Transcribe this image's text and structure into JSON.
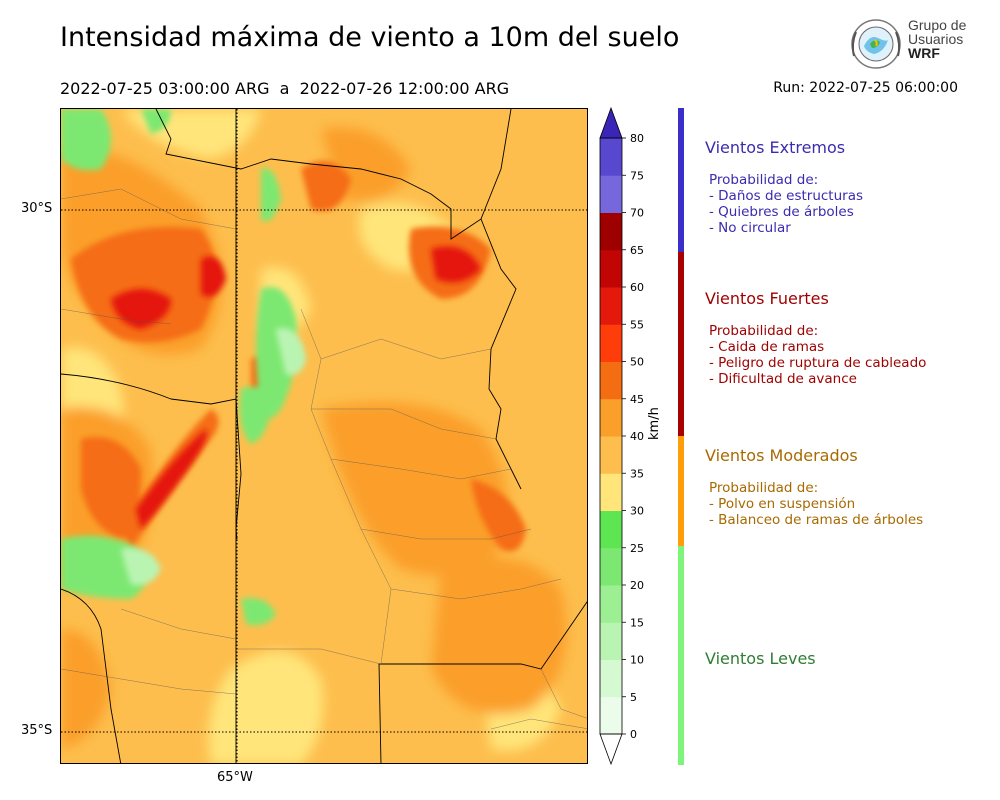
{
  "header": {
    "title": "Intensidad máxima de viento a 10m del suelo",
    "period": "2022-07-25 03:00:00 ARG  a  2022-07-26 12:00:00 ARG",
    "run": "Run: 2022-07-25 06:00:00"
  },
  "logo": {
    "line1": "Grupo de",
    "line2": "Usuarios",
    "line3": "WRF"
  },
  "map_labels": {
    "lat_north": "30°S",
    "lat_south": "35°S",
    "lon": "65°W"
  },
  "colorbar": {
    "unit": "km/h",
    "ticks": [
      0,
      5,
      10,
      15,
      20,
      25,
      30,
      35,
      40,
      45,
      50,
      55,
      60,
      65,
      70,
      75,
      80
    ],
    "colors": [
      "#ebfdea",
      "#d5f9d1",
      "#b9f4b2",
      "#9cef92",
      "#7de871",
      "#5ee552",
      "#ffe57a",
      "#fdbe4d",
      "#fb9f2b",
      "#f56d12",
      "#ff3d0a",
      "#e4190c",
      "#c10404",
      "#9e0000",
      "#7667dc",
      "#5848cf",
      "#4534c6"
    ],
    "under_color": "#ffffff",
    "over_color": "#3b25b8"
  },
  "categories": [
    {
      "title": "Vientos Extremos",
      "color": "#3b2dc8",
      "text_color": "#3b2bb0",
      "heading": "Probabilidad de:",
      "items": [
        "- Daños de estructuras",
        "- Quiebres de árboles",
        "- No circular"
      ]
    },
    {
      "title": "Vientos Fuertes",
      "color": "#a60000",
      "text_color": "#9e0000",
      "heading": "Probabilidad de:",
      "items": [
        "- Caida de ramas",
        "- Peligro de ruptura de cableado",
        "- Dificultad de avance"
      ]
    },
    {
      "title": "Vientos Moderados",
      "color": "#ff9e0a",
      "text_color": "#a86a00",
      "heading": "Probabilidad de:",
      "items": [
        "- Polvo en suspensión",
        "- Balanceo de ramas de árboles"
      ]
    },
    {
      "title": "Vientos Leves",
      "color": "#7ef57a",
      "text_color": "#2e7d32",
      "heading": "",
      "items": []
    }
  ],
  "chart_data": {
    "type": "heatmap",
    "title": "Intensidad máxima de viento a 10m del suelo",
    "subtitle": "2022-07-25 03:00:00 ARG  a  2022-07-26 12:00:00 ARG",
    "ylabel": "",
    "colorbar_label": "km/h",
    "colorbar_range": [
      0,
      80
    ],
    "levels": [
      0,
      5,
      10,
      15,
      20,
      25,
      30,
      35,
      40,
      45,
      50,
      55,
      60,
      65,
      70,
      75,
      80
    ],
    "lat_ticks": [
      "30°S",
      "35°S"
    ],
    "lon_ticks": [
      "65°W"
    ],
    "grid": "dotted at 30°S, 35°S and 65°W"
  }
}
